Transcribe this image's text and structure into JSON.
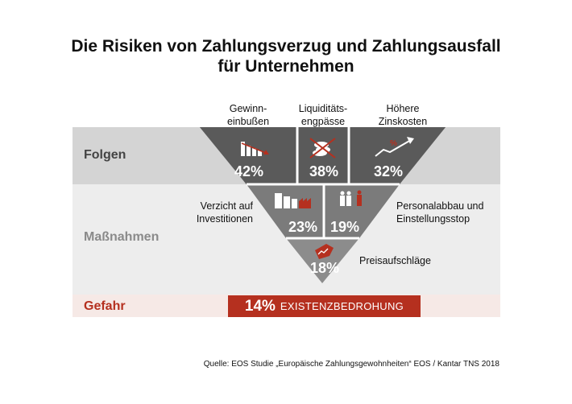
{
  "title": {
    "line1": "Die Risiken von Zahlungsverzug und Zahlungsausfall",
    "line2": "für Unternehmen"
  },
  "bands": {
    "folgen": "Folgen",
    "massnahmen": "Maßnahmen",
    "gefahr": "Gefahr"
  },
  "colors": {
    "dark_triangle": "#5a5a5a",
    "mid_triangle": "#7b7b7b",
    "light_triangle": "#8c8c8c",
    "accent_red": "#b5301f",
    "massnahmen_label": "#8a8a8a"
  },
  "folgen": [
    {
      "label": "Gewinn-\neinbußen",
      "value": "42%",
      "icon": "bar-chart-decline-icon"
    },
    {
      "label": "Liquiditäts-\nengpässe",
      "value": "38%",
      "icon": "crossed-coins-icon"
    },
    {
      "label": "Höhere\nZinskosten",
      "value": "32%",
      "icon": "rising-percent-arrow-icon"
    }
  ],
  "massnahmen": [
    {
      "label": "Verzicht auf\nInvestitionen",
      "value": "23%",
      "icon": "factory-buildings-icon"
    },
    {
      "label": "Personalabbau und\nEinstellungsstop",
      "value": "19%",
      "icon": "people-icon"
    },
    {
      "label": "Preisaufschläge",
      "value": "18%",
      "icon": "price-tag-icon"
    }
  ],
  "gefahr": {
    "value": "14%",
    "label": "EXISTENZBEDROHUNG"
  },
  "source": "Quelle: EOS Studie „Europäische Zahlungsgewohnheiten“ EOS / Kantar TNS 2018"
}
